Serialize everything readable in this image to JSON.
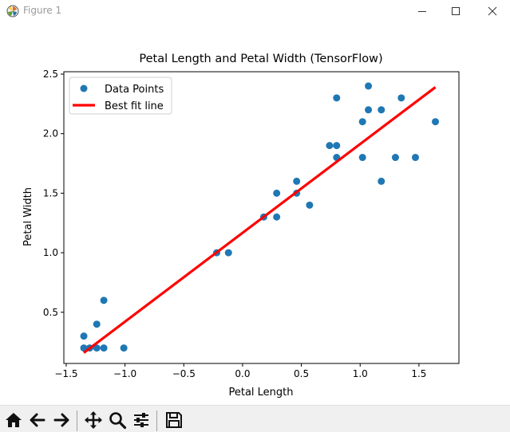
{
  "window": {
    "title": "Figure 1",
    "icons": {
      "app": "matplotlib-logo-icon",
      "minimize": "minimize-icon",
      "maximize": "maximize-icon",
      "close": "close-icon"
    }
  },
  "toolbar": {
    "buttons": [
      {
        "name": "home-button",
        "icon": "home-icon"
      },
      {
        "name": "back-button",
        "icon": "arrow-left-icon"
      },
      {
        "name": "forward-button",
        "icon": "arrow-right-icon"
      },
      {
        "name": "pan-button",
        "icon": "move-icon"
      },
      {
        "name": "zoom-button",
        "icon": "magnifier-icon"
      },
      {
        "name": "configure-subplots-button",
        "icon": "sliders-icon"
      },
      {
        "name": "save-button",
        "icon": "floppy-disk-icon"
      }
    ]
  },
  "chart_data": {
    "type": "scatter",
    "title": "Petal Length and Petal Width (TensorFlow)",
    "xlabel": "Petal Length",
    "ylabel": "Petal Width",
    "xlim": [
      -1.52,
      1.84
    ],
    "ylim": [
      0.07,
      2.52
    ],
    "xticks": [
      -1.5,
      -1.0,
      -0.5,
      0.0,
      0.5,
      1.0,
      1.5
    ],
    "xtick_labels": [
      "−1.5",
      "−1.0",
      "−0.5",
      "0.0",
      "0.5",
      "1.0",
      "1.5"
    ],
    "yticks": [
      0.5,
      1.0,
      1.5,
      2.0,
      2.5
    ],
    "ytick_labels": [
      "0.5",
      "1.0",
      "1.5",
      "2.0",
      "2.5"
    ],
    "grid": false,
    "legend_position": "top-left",
    "series": [
      {
        "name": "Data Points",
        "kind": "scatter",
        "color": "#1f77b4",
        "points": [
          [
            -1.35,
            0.3
          ],
          [
            -1.35,
            0.2
          ],
          [
            -1.3,
            0.2
          ],
          [
            -1.24,
            0.4
          ],
          [
            -1.24,
            0.2
          ],
          [
            -1.18,
            0.6
          ],
          [
            -1.18,
            0.2
          ],
          [
            -1.01,
            0.2
          ],
          [
            -0.22,
            1.0
          ],
          [
            -0.12,
            1.0
          ],
          [
            0.18,
            1.3
          ],
          [
            0.29,
            1.5
          ],
          [
            0.29,
            1.3
          ],
          [
            0.46,
            1.6
          ],
          [
            0.46,
            1.5
          ],
          [
            0.57,
            1.4
          ],
          [
            0.74,
            1.9
          ],
          [
            0.8,
            2.3
          ],
          [
            0.8,
            1.9
          ],
          [
            0.8,
            1.8
          ],
          [
            1.02,
            2.1
          ],
          [
            1.02,
            1.8
          ],
          [
            1.07,
            2.4
          ],
          [
            1.07,
            2.2
          ],
          [
            1.18,
            2.2
          ],
          [
            1.18,
            1.6
          ],
          [
            1.3,
            1.8
          ],
          [
            1.35,
            2.3
          ],
          [
            1.47,
            1.8
          ],
          [
            1.64,
            2.1
          ]
        ]
      },
      {
        "name": "Best fit line",
        "kind": "line",
        "color": "#ff0000",
        "points": [
          [
            -1.35,
            0.16
          ],
          [
            1.64,
            2.39
          ]
        ]
      }
    ]
  }
}
